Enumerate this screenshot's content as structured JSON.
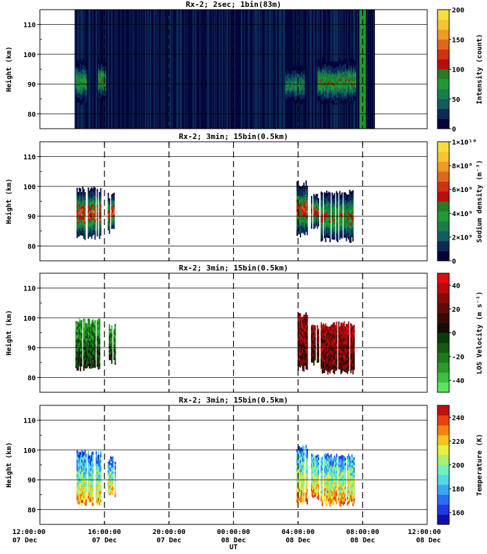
{
  "chart_data": {
    "type": "heatmap",
    "x_axis": {
      "label": "UT",
      "range": [
        0,
        24
      ],
      "ticks": [
        {
          "v": 0,
          "t1": "12:00:00",
          "t2": "07 Dec"
        },
        {
          "v": 4,
          "t1": "16:00:00",
          "t2": "07 Dec"
        },
        {
          "v": 8,
          "t1": "20:00:00",
          "t2": "07 Dec"
        },
        {
          "v": 12,
          "t1": "00:00:00",
          "t2": "08 Dec"
        },
        {
          "v": 16,
          "t1": "04:00:00",
          "t2": "08 Dec"
        },
        {
          "v": 20,
          "t1": "08:00:00",
          "t2": "08 Dec"
        },
        {
          "v": 24,
          "t1": "12:00:00",
          "t2": "08 Dec"
        }
      ],
      "dashed_lines": [
        4,
        8,
        12,
        16,
        20
      ]
    },
    "panels": [
      {
        "title": "Rx-2;  2sec; 1bin(83m)",
        "ylabel": "Height (km)",
        "ylim": [
          75,
          115
        ],
        "yticks": [
          80,
          90,
          100,
          110
        ],
        "colorbar": {
          "label": "Intensity (count)",
          "range": [
            0,
            200
          ],
          "tick_values": [
            0,
            50,
            100,
            150,
            200
          ],
          "tick_labels": [
            "0",
            "50",
            "100",
            "150",
            "200"
          ],
          "colors": [
            "#03053a",
            "#0b2a55",
            "#125e5e",
            "#187d49",
            "#1f9a34",
            "#2a7a22",
            "#b80e0e",
            "#cc3311",
            "#e0661c",
            "#ee9a26",
            "#f7c431",
            "#f8dd3f"
          ]
        },
        "coverage": [
          [
            2.15,
            20.75
          ]
        ],
        "segments": [
          {
            "t": [
              2.2,
              2.9
            ],
            "h": [
              83,
              99
            ],
            "peak": 0.4
          },
          {
            "t": [
              3.6,
              4.1
            ],
            "h": [
              84,
              99
            ],
            "peak": 0.45
          },
          {
            "t": [
              15.2,
              16.4
            ],
            "h": [
              83,
              97
            ],
            "peak": 0.3
          },
          {
            "t": [
              17.2,
              19.6
            ],
            "h": [
              83,
              99
            ],
            "peak": 0.45
          }
        ],
        "full_band": {
          "t": [
            19.8,
            20.2
          ],
          "level": 0.25
        }
      },
      {
        "title": "Rx-2; 3min; 15bin(0.5km)",
        "ylabel": "Height (km)",
        "ylim": [
          75,
          115
        ],
        "yticks": [
          80,
          90,
          100,
          110
        ],
        "colorbar": {
          "label": "Sodium density (m⁻³)",
          "range": [
            0,
            10000000000
          ],
          "tick_values": [
            0,
            2000000000,
            4000000000,
            6000000000,
            8000000000,
            10000000000
          ],
          "tick_labels": [
            "0",
            "2×10⁹",
            "4×10⁹",
            "6×10⁹",
            "8×10⁹",
            "1×10¹⁰"
          ],
          "colors": [
            "#03053a",
            "#0b2a55",
            "#125e5e",
            "#187d49",
            "#1f9a34",
            "#2a7a22",
            "#b80e0e",
            "#cc3311",
            "#e0661c",
            "#ee9a26",
            "#f7c431",
            "#f8dd3f"
          ]
        },
        "segments": [
          {
            "t": [
              2.2,
              3.8
            ],
            "h": [
              82,
              100
            ],
            "peak": 0.6
          },
          {
            "t": [
              4.2,
              4.7
            ],
            "h": [
              84,
              98
            ],
            "peak": 0.6
          },
          {
            "t": [
              15.9,
              16.6
            ],
            "h": [
              83,
              102
            ],
            "peak": 0.55
          },
          {
            "t": [
              16.8,
              17.3
            ],
            "h": [
              85,
              98
            ],
            "peak": 0.55
          },
          {
            "t": [
              17.4,
              19.5
            ],
            "h": [
              81,
              99
            ],
            "peak": 0.45
          }
        ]
      },
      {
        "title": "Rx-2; 3min; 15bin(0.5km)",
        "ylabel": "Height (km)",
        "ylim": [
          75,
          115
        ],
        "yticks": [
          80,
          90,
          100,
          110
        ],
        "colorbar": {
          "label": "LOS Velocity (m s⁻¹)",
          "range": [
            -50,
            50
          ],
          "tick_values": [
            -40,
            -20,
            0,
            20,
            40
          ],
          "tick_labels": [
            "-40",
            "-20",
            "0",
            "20",
            "40"
          ],
          "colors": [
            "#5ae65a",
            "#3cc23c",
            "#2a9a2a",
            "#1d7a1d",
            "#125a12",
            "#0b3a0b",
            "#1a0a05",
            "#3a0a06",
            "#600a08",
            "#8a0a0a",
            "#b80a0a",
            "#e00c0c"
          ]
        },
        "segments": [
          {
            "t": [
              2.2,
              3.8
            ],
            "h": [
              82,
              100
            ],
            "peak": 0.35
          },
          {
            "t": [
              4.2,
              4.7
            ],
            "h": [
              84,
              98
            ],
            "peak": 0.35
          },
          {
            "t": [
              15.9,
              16.6
            ],
            "h": [
              82,
              102
            ],
            "peak": 0.85
          },
          {
            "t": [
              16.8,
              17.3
            ],
            "h": [
              84,
              98
            ],
            "peak": 0.8
          },
          {
            "t": [
              17.4,
              19.5
            ],
            "h": [
              81,
              99
            ],
            "peak": 0.85
          }
        ]
      },
      {
        "title": "Rx-2; 3min; 15bin(0.5km)",
        "ylabel": "Height (km)",
        "ylim": [
          75,
          115
        ],
        "yticks": [
          80,
          90,
          100,
          110
        ],
        "colorbar": {
          "label": "Temperature (K)",
          "range": [
            150,
            250
          ],
          "tick_values": [
            160,
            180,
            200,
            220,
            240
          ],
          "tick_labels": [
            "160",
            "180",
            "200",
            "220",
            "240"
          ],
          "colors": [
            "#1010b0",
            "#1c3ce0",
            "#2a70f0",
            "#3aa8f0",
            "#50d8e8",
            "#70f0c0",
            "#a8f070",
            "#e8f040",
            "#f8c020",
            "#f88010",
            "#e84010",
            "#c01010"
          ]
        },
        "segments": [
          {
            "t": [
              2.2,
              3.8
            ],
            "h": [
              81,
              100
            ],
            "peak": 0.45
          },
          {
            "t": [
              4.2,
              4.7
            ],
            "h": [
              84,
              98
            ],
            "peak": 0.45
          },
          {
            "t": [
              15.9,
              16.6
            ],
            "h": [
              81,
              102
            ],
            "peak": 0.5
          },
          {
            "t": [
              16.8,
              17.3
            ],
            "h": [
              83,
              99
            ],
            "peak": 0.5
          },
          {
            "t": [
              17.4,
              19.5
            ],
            "h": [
              81,
              99
            ],
            "peak": 0.5
          }
        ]
      }
    ]
  }
}
